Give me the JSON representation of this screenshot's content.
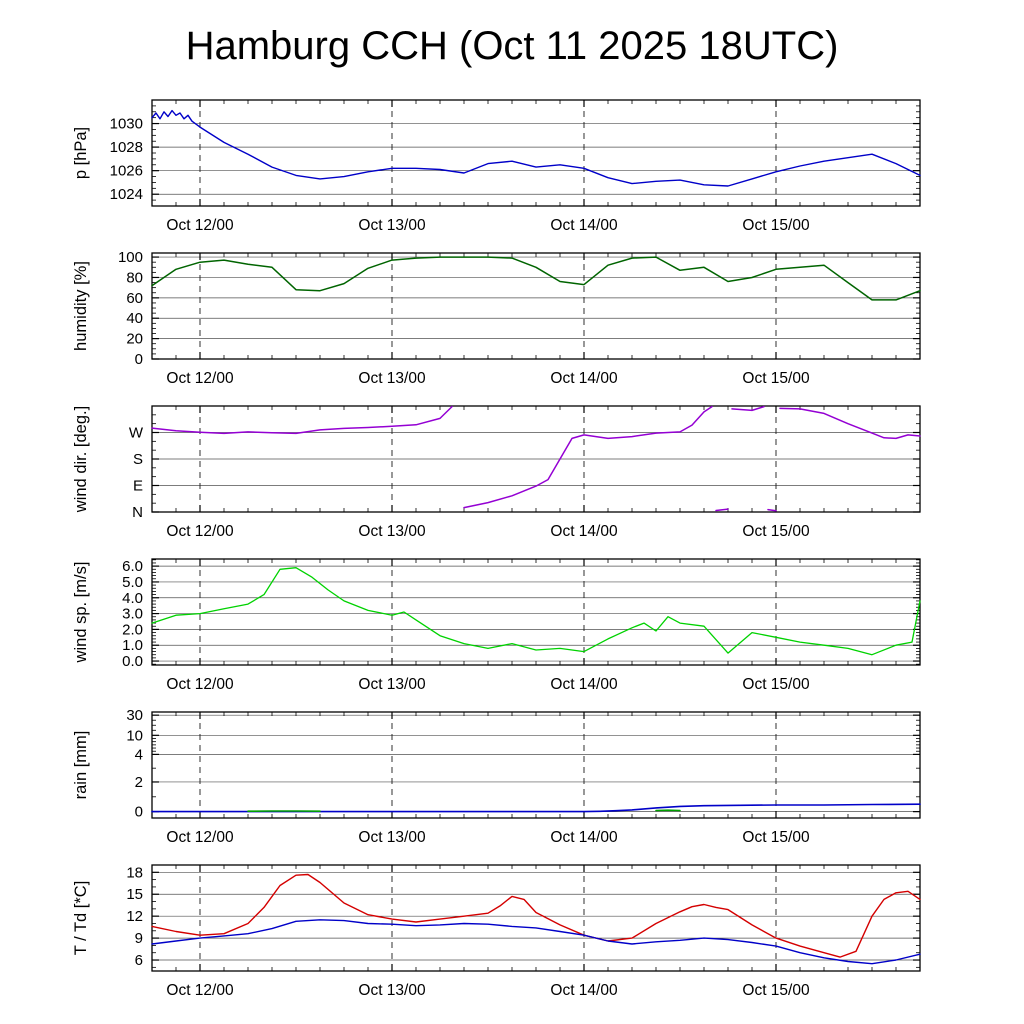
{
  "chart_data": {
    "type": "line",
    "title": "Hamburg CCH (Oct 11 2025 18UTC)",
    "x_axis": {
      "unit": "hours since Oct 11 2025 18UTC",
      "range": [
        0,
        96
      ],
      "minor_tick_step": 3,
      "major_ticks": [
        {
          "hour": 6,
          "label": "Oct 12/00"
        },
        {
          "hour": 30,
          "label": "Oct 13/00"
        },
        {
          "hour": 54,
          "label": "Oct 14/00"
        },
        {
          "hour": 78,
          "label": "Oct 15/00"
        }
      ]
    },
    "panels": [
      {
        "id": "pressure",
        "ylabel": "p [hPa]",
        "scale": "linear",
        "ylim": [
          1023,
          1032
        ],
        "minor_step": 0.5,
        "yticks": [
          {
            "v": 1024,
            "label": "1024"
          },
          {
            "v": 1026,
            "label": "1026"
          },
          {
            "v": 1028,
            "label": "1028"
          },
          {
            "v": 1030,
            "label": "1030"
          }
        ],
        "series": [
          {
            "name": "pressure",
            "color": "#0000c8",
            "width": 1.4,
            "x": [
              0,
              0.5,
              1,
              1.5,
              2,
              2.5,
              3,
              3.5,
              4,
              4.5,
              5,
              6,
              9,
              12,
              15,
              18,
              21,
              24,
              27,
              30,
              33,
              36,
              39,
              42,
              45,
              48,
              51,
              54,
              57,
              60,
              63,
              66,
              69,
              72,
              75,
              78,
              81,
              84,
              87,
              90,
              93,
              96
            ],
            "y": [
              1030.5,
              1030.9,
              1030.4,
              1031.0,
              1030.6,
              1031.1,
              1030.7,
              1030.9,
              1030.4,
              1030.7,
              1030.2,
              1029.7,
              1028.4,
              1027.4,
              1026.3,
              1025.6,
              1025.3,
              1025.5,
              1025.9,
              1026.2,
              1026.2,
              1026.1,
              1025.8,
              1026.6,
              1026.8,
              1026.3,
              1026.5,
              1026.2,
              1025.4,
              1024.9,
              1025.1,
              1025.2,
              1024.8,
              1024.7,
              1025.3,
              1025.9,
              1026.4,
              1026.8,
              1027.1,
              1027.4,
              1026.6,
              1025.6
            ]
          }
        ]
      },
      {
        "id": "humidity",
        "ylabel": "humidity [%]",
        "scale": "linear",
        "ylim": [
          0,
          104
        ],
        "minor_step": 5,
        "yticks": [
          {
            "v": 0,
            "label": "0"
          },
          {
            "v": 20,
            "label": "20"
          },
          {
            "v": 40,
            "label": "40"
          },
          {
            "v": 60,
            "label": "60"
          },
          {
            "v": 80,
            "label": "80"
          },
          {
            "v": 100,
            "label": "100"
          }
        ],
        "series": [
          {
            "name": "humidity",
            "color": "#006400",
            "width": 1.5,
            "x": [
              0,
              3,
              6,
              9,
              12,
              15,
              18,
              21,
              24,
              27,
              30,
              33,
              36,
              39,
              42,
              45,
              48,
              51,
              54,
              57,
              60,
              63,
              66,
              69,
              72,
              75,
              78,
              81,
              84,
              87,
              90,
              93,
              96
            ],
            "y": [
              72,
              88,
              95,
              97,
              93,
              90,
              68,
              67,
              74,
              89,
              97,
              99,
              100,
              100,
              100,
              99,
              90,
              76,
              73,
              92,
              99,
              100,
              87,
              90,
              76,
              80,
              88,
              90,
              92,
              75,
              58,
              58,
              67
            ]
          }
        ]
      },
      {
        "id": "wind-direction",
        "ylabel": "wind dir. [deg.]",
        "scale": "linear",
        "ylim": [
          0,
          360
        ],
        "minor_step": 30,
        "yticks": [
          {
            "v": 0,
            "label": "N"
          },
          {
            "v": 90,
            "label": "E"
          },
          {
            "v": 180,
            "label": "S"
          },
          {
            "v": 270,
            "label": "W"
          }
        ],
        "series": [
          {
            "name": "wind-direction",
            "color": "#9400d3",
            "width": 1.5,
            "x": [
              0,
              3,
              6,
              9,
              12,
              15,
              18,
              21,
              24,
              27,
              30,
              33,
              36,
              37.5,
              38.5,
              39,
              42,
              45,
              48,
              49.5,
              51,
              52.5,
              54,
              57,
              60,
              63,
              66,
              67.5,
              69,
              70,
              70.2,
              70.5,
              72,
              72.2,
              72.5,
              75,
              76.5,
              76.7,
              77,
              78,
              78.2,
              78.5,
              81,
              84,
              87,
              90,
              91.5,
              93,
              94.5,
              96
            ],
            "y": [
              285,
              276,
              271,
              267,
              272,
              269,
              267,
              279,
              284,
              287,
              291,
              296,
              318,
              358,
              null,
              15,
              32,
              55,
              88,
              110,
              180,
              250,
              262,
              250,
              256,
              268,
              272,
              295,
              340,
              358,
              null,
              5,
              10,
              null,
              350,
              345,
              358,
              null,
              8,
              4,
              null,
              352,
              350,
              335,
              300,
              268,
              252,
              250,
              262,
              258
            ]
          }
        ]
      },
      {
        "id": "wind-speed",
        "ylabel": "wind sp. [m/s]",
        "scale": "linear",
        "ylim": [
          -0.25,
          6.45
        ],
        "minor_step": 0.2,
        "yticks": [
          {
            "v": 0,
            "label": "0.0"
          },
          {
            "v": 1,
            "label": "1.0"
          },
          {
            "v": 2,
            "label": "2.0"
          },
          {
            "v": 3,
            "label": "3.0"
          },
          {
            "v": 4,
            "label": "4.0"
          },
          {
            "v": 5,
            "label": "5.0"
          },
          {
            "v": 6,
            "label": "6.0"
          }
        ],
        "series": [
          {
            "name": "wind-speed",
            "color": "#00d200",
            "width": 1.3,
            "x": [
              0,
              3,
              6,
              9,
              12,
              14,
              16,
              18,
              20,
              22,
              24,
              27,
              30,
              31.5,
              33,
              36,
              39,
              42,
              45,
              48,
              51,
              54,
              57,
              60,
              61.5,
              63,
              64.5,
              66,
              69,
              72,
              75,
              78,
              81,
              84,
              87,
              90,
              93,
              95,
              96
            ],
            "y": [
              2.4,
              2.9,
              3.0,
              3.3,
              3.6,
              4.2,
              5.8,
              5.9,
              5.3,
              4.5,
              3.8,
              3.2,
              2.9,
              3.1,
              2.6,
              1.6,
              1.1,
              0.8,
              1.1,
              0.7,
              0.8,
              0.6,
              1.4,
              2.1,
              2.4,
              1.9,
              2.8,
              2.4,
              2.2,
              0.5,
              1.8,
              1.5,
              1.2,
              1.0,
              0.8,
              0.4,
              1.0,
              1.2,
              3.8
            ]
          }
        ]
      },
      {
        "id": "rain",
        "ylabel": "rain [mm]",
        "scale": "rain",
        "scale_anchors": [
          [
            0,
            0.06
          ],
          [
            2,
            0.34
          ],
          [
            4,
            0.6
          ],
          [
            10,
            0.78
          ],
          [
            30,
            0.97
          ]
        ],
        "minor_vals": [
          1,
          3,
          5,
          6,
          7,
          8,
          9,
          15,
          20,
          25
        ],
        "yticks": [
          {
            "v": 0,
            "label": "0"
          },
          {
            "v": 2,
            "label": "2"
          },
          {
            "v": 4,
            "label": "4"
          },
          {
            "v": 10,
            "label": "10"
          },
          {
            "v": 30,
            "label": "30"
          }
        ],
        "series": [
          {
            "name": "rain-accumulated",
            "color": "#0000c8",
            "width": 1.6,
            "x": [
              0,
              6,
              12,
              18,
              24,
              30,
              36,
              42,
              48,
              54,
              56,
              58,
              60,
              63,
              66,
              69,
              72,
              78,
              84,
              90,
              96
            ],
            "y": [
              0,
              0,
              0,
              0,
              0,
              0,
              0,
              0,
              0,
              0,
              0.02,
              0.06,
              0.12,
              0.25,
              0.35,
              0.4,
              0.42,
              0.45,
              0.45,
              0.48,
              0.5
            ]
          },
          {
            "name": "rain-intensity",
            "color": "#00a000",
            "width": 1.6,
            "x": [
              12,
              15,
              18,
              21,
              22,
              63,
              64.5,
              66
            ],
            "y": [
              0.03,
              0.04,
              0.04,
              0.03,
              null,
              0.08,
              0.1,
              0.08
            ]
          }
        ]
      },
      {
        "id": "temperature",
        "ylabel": "T / Td [*C]",
        "scale": "linear",
        "ylim": [
          4.5,
          19
        ],
        "minor_step": 1,
        "yticks": [
          {
            "v": 6,
            "label": "6"
          },
          {
            "v": 9,
            "label": "9"
          },
          {
            "v": 12,
            "label": "12"
          },
          {
            "v": 15,
            "label": "15"
          },
          {
            "v": 18,
            "label": "18"
          }
        ],
        "series": [
          {
            "name": "temperature",
            "color": "#d40000",
            "width": 1.4,
            "x": [
              0,
              3,
              6,
              9,
              12,
              14,
              16,
              18,
              19.5,
              21,
              24,
              27,
              30,
              33,
              36,
              39,
              42,
              43.5,
              45,
              46.5,
              48,
              51,
              54,
              57,
              60,
              63,
              66,
              67.5,
              69,
              70.5,
              72,
              75,
              78,
              81,
              84,
              86,
              88,
              90,
              91.5,
              93,
              94.5,
              96
            ],
            "y": [
              10.6,
              9.9,
              9.4,
              9.6,
              11.0,
              13.2,
              16.2,
              17.6,
              17.7,
              16.6,
              13.8,
              12.2,
              11.6,
              11.2,
              11.6,
              12.0,
              12.4,
              13.4,
              14.7,
              14.3,
              12.5,
              10.8,
              9.4,
              8.6,
              9.0,
              11.0,
              12.6,
              13.3,
              13.6,
              13.2,
              12.9,
              10.8,
              9.0,
              7.9,
              7.0,
              6.4,
              7.2,
              12.0,
              14.3,
              15.2,
              15.4,
              14.3
            ]
          },
          {
            "name": "dewpoint",
            "color": "#0000c8",
            "width": 1.4,
            "x": [
              0,
              3,
              6,
              9,
              12,
              15,
              18,
              21,
              24,
              27,
              30,
              33,
              36,
              39,
              42,
              45,
              48,
              51,
              54,
              57,
              60,
              63,
              66,
              69,
              72,
              75,
              78,
              81,
              84,
              87,
              90,
              93,
              96
            ],
            "y": [
              8.2,
              8.6,
              9.0,
              9.3,
              9.6,
              10.3,
              11.3,
              11.5,
              11.4,
              11.0,
              10.9,
              10.7,
              10.8,
              11.0,
              10.9,
              10.6,
              10.4,
              9.9,
              9.4,
              8.6,
              8.2,
              8.5,
              8.7,
              9.0,
              8.8,
              8.4,
              7.9,
              7.0,
              6.3,
              5.8,
              5.5,
              6.0,
              6.8
            ]
          }
        ]
      }
    ]
  }
}
